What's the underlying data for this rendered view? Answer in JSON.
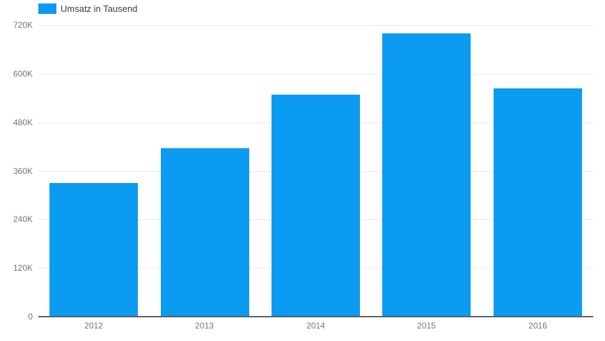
{
  "chart_data": {
    "type": "bar",
    "title": "",
    "xlabel": "",
    "ylabel": "",
    "legend": {
      "label": "Umsatz in Tausend",
      "position": "top-left"
    },
    "categories": [
      "2012",
      "2013",
      "2014",
      "2015",
      "2016"
    ],
    "series": [
      {
        "name": "Umsatz in Tausend",
        "values": [
          330000,
          415000,
          548000,
          700000,
          563000
        ]
      }
    ],
    "ylim": [
      0,
      720000
    ],
    "ytick_step": 120000,
    "ytick_labels": [
      "0",
      "120K",
      "240K",
      "360K",
      "480K",
      "600K",
      "720K"
    ],
    "grid": true,
    "colors": {
      "bar": "#0b9bf1",
      "gridline": "#ebebeb",
      "axis_line": "#5f5f5f",
      "tick_label": "#757575",
      "legend_text": "#3d3d3d",
      "background": "#ffffff"
    }
  }
}
